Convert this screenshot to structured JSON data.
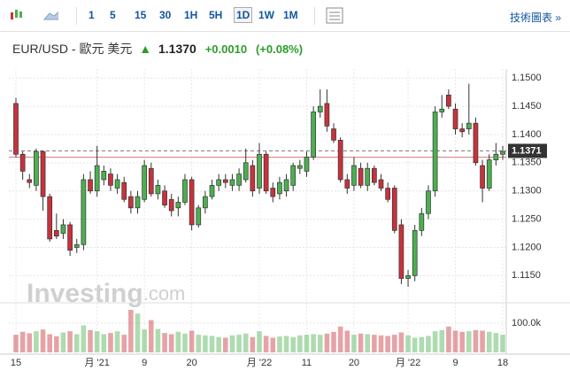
{
  "toolbar": {
    "intervals": [
      "1",
      "5",
      "15",
      "30",
      "1H",
      "5H",
      "1D",
      "1W",
      "1M"
    ],
    "active": "1D",
    "tech_link": "技術圖表 »"
  },
  "header": {
    "title": "EUR/USD - 歐元 美元",
    "price": "1.1370",
    "change": "+0.0010",
    "change_pct": "(+0.08%)"
  },
  "watermark": {
    "brand": "Investing",
    "suffix": ".com"
  },
  "chart_data": {
    "type": "candlestick",
    "x": [
      "15",
      null,
      null,
      null,
      null,
      null,
      null,
      null,
      null,
      null,
      null,
      null,
      "月 '21",
      null,
      null,
      null,
      null,
      null,
      null,
      "9",
      null,
      null,
      null,
      null,
      null,
      null,
      "20",
      null,
      null,
      null,
      null,
      null,
      null,
      null,
      null,
      null,
      "月 '22",
      null,
      null,
      null,
      null,
      null,
      null,
      "11",
      null,
      null,
      null,
      null,
      null,
      null,
      "20",
      null,
      null,
      null,
      null,
      null,
      null,
      null,
      "月 '22",
      null,
      null,
      null,
      null,
      null,
      null,
      "9",
      null,
      null,
      null,
      null,
      null,
      null,
      "18"
    ],
    "open": [
      1.1455,
      1.1365,
      1.132,
      1.131,
      1.137,
      1.129,
      1.123,
      1.1225,
      1.124,
      1.12,
      1.1205,
      1.132,
      1.13,
      1.132,
      1.133,
      1.1305,
      1.1315,
      1.129,
      1.127,
      1.1285,
      1.134,
      1.1295,
      1.13,
      1.1285,
      1.127,
      1.128,
      1.132,
      1.124,
      1.127,
      1.129,
      1.131,
      1.132,
      1.131,
      1.131,
      1.132,
      1.1345,
      1.1305,
      1.1365,
      1.1305,
      1.1295,
      1.13,
      1.131,
      1.134,
      1.1335,
      1.136,
      1.144,
      1.1455,
      1.141,
      1.139,
      1.132,
      1.131,
      1.134,
      1.131,
      1.134,
      1.132,
      1.1305,
      1.1305,
      1.124,
      1.1145,
      1.115,
      1.123,
      1.126,
      1.13,
      1.144,
      1.147,
      1.1445,
      1.141,
      1.141,
      1.142,
      1.1345,
      1.1305,
      1.1355,
      1.1365
    ],
    "high": [
      1.1465,
      1.137,
      1.133,
      1.1375,
      1.1372,
      1.1295,
      1.126,
      1.125,
      1.1245,
      1.1215,
      1.133,
      1.1335,
      1.138,
      1.1345,
      1.134,
      1.133,
      1.1325,
      1.13,
      1.13,
      1.1355,
      1.135,
      1.132,
      1.131,
      1.1295,
      1.129,
      1.133,
      1.1325,
      1.1275,
      1.13,
      1.132,
      1.133,
      1.133,
      1.133,
      1.134,
      1.1375,
      1.1355,
      1.1385,
      1.137,
      1.1315,
      1.1325,
      1.133,
      1.135,
      1.1355,
      1.137,
      1.145,
      1.148,
      1.148,
      1.142,
      1.1395,
      1.133,
      1.136,
      1.135,
      1.135,
      1.1345,
      1.133,
      1.1315,
      1.131,
      1.125,
      1.116,
      1.124,
      1.127,
      1.131,
      1.145,
      1.147,
      1.148,
      1.1455,
      1.142,
      1.149,
      1.143,
      1.1355,
      1.1365,
      1.1385,
      1.138
    ],
    "low": [
      1.136,
      1.132,
      1.1305,
      1.13,
      1.1265,
      1.121,
      1.1215,
      1.1215,
      1.1185,
      1.119,
      1.1195,
      1.1295,
      1.129,
      1.131,
      1.13,
      1.1295,
      1.128,
      1.126,
      1.126,
      1.128,
      1.129,
      1.1285,
      1.127,
      1.1255,
      1.1255,
      1.1275,
      1.123,
      1.1235,
      1.126,
      1.1285,
      1.13,
      1.1305,
      1.13,
      1.13,
      1.1315,
      1.129,
      1.1295,
      1.1295,
      1.128,
      1.1285,
      1.129,
      1.13,
      1.133,
      1.1325,
      1.1355,
      1.143,
      1.1405,
      1.1385,
      1.1315,
      1.1295,
      1.13,
      1.1305,
      1.13,
      1.131,
      1.13,
      1.128,
      1.1225,
      1.1135,
      1.113,
      1.114,
      1.122,
      1.125,
      1.129,
      1.143,
      1.1445,
      1.14,
      1.1395,
      1.14,
      1.1345,
      1.128,
      1.13,
      1.1345,
      1.1355
    ],
    "close": [
      1.1365,
      1.1335,
      1.1315,
      1.137,
      1.129,
      1.1215,
      1.122,
      1.124,
      1.1195,
      1.1205,
      1.132,
      1.13,
      1.1345,
      1.1335,
      1.131,
      1.132,
      1.1285,
      1.127,
      1.129,
      1.1345,
      1.1295,
      1.131,
      1.1275,
      1.1265,
      1.128,
      1.132,
      1.124,
      1.127,
      1.129,
      1.131,
      1.132,
      1.1315,
      1.132,
      1.133,
      1.135,
      1.13,
      1.1365,
      1.13,
      1.129,
      1.1315,
      1.132,
      1.1345,
      1.1345,
      1.136,
      1.144,
      1.145,
      1.1415,
      1.139,
      1.132,
      1.1305,
      1.1345,
      1.131,
      1.134,
      1.1315,
      1.1305,
      1.1285,
      1.123,
      1.1145,
      1.115,
      1.123,
      1.126,
      1.13,
      1.144,
      1.1445,
      1.145,
      1.141,
      1.1405,
      1.142,
      1.135,
      1.1305,
      1.1355,
      1.1365,
      1.137
    ],
    "volume": [
      60000,
      70000,
      65000,
      72000,
      78000,
      62000,
      55000,
      68000,
      72000,
      62000,
      92000,
      76000,
      72000,
      62000,
      66000,
      72000,
      60000,
      145000,
      132000,
      78000,
      110000,
      80000,
      66000,
      62000,
      70000,
      64000,
      74000,
      60000,
      58000,
      56000,
      52000,
      50000,
      58000,
      60000,
      64000,
      52000,
      72000,
      56000,
      50000,
      54000,
      56000,
      52000,
      58000,
      60000,
      62000,
      60000,
      64000,
      70000,
      88000,
      74000,
      60000,
      64000,
      62000,
      60000,
      58000,
      56000,
      60000,
      68000,
      58000,
      50000,
      52000,
      56000,
      72000,
      76000,
      88000,
      74000,
      70000,
      72000,
      76000,
      74000,
      70000,
      66000,
      60000
    ],
    "up_color": "#4caf50",
    "down_color": "#c8323c",
    "ylim": [
      1.1105,
      1.1516
    ],
    "yticks": [
      {
        "value": 1.115,
        "label": "1.1150"
      },
      {
        "value": 1.12,
        "label": "1.1200"
      },
      {
        "value": 1.125,
        "label": "1.1250"
      },
      {
        "value": 1.13,
        "label": "1.1300"
      },
      {
        "value": 1.135,
        "label": "1.1350"
      },
      {
        "value": 1.14,
        "label": "1.1400"
      },
      {
        "value": 1.145,
        "label": "1.1450"
      },
      {
        "value": 1.15,
        "label": "1.1500"
      }
    ],
    "volume_lim": [
      0,
      160000
    ],
    "volume_ticks": [
      {
        "value": 100000,
        "label": "100.0k"
      }
    ],
    "last_price": {
      "value": 1.1371,
      "label": "1.1371"
    },
    "reference_line": 1.136,
    "grid": true
  }
}
